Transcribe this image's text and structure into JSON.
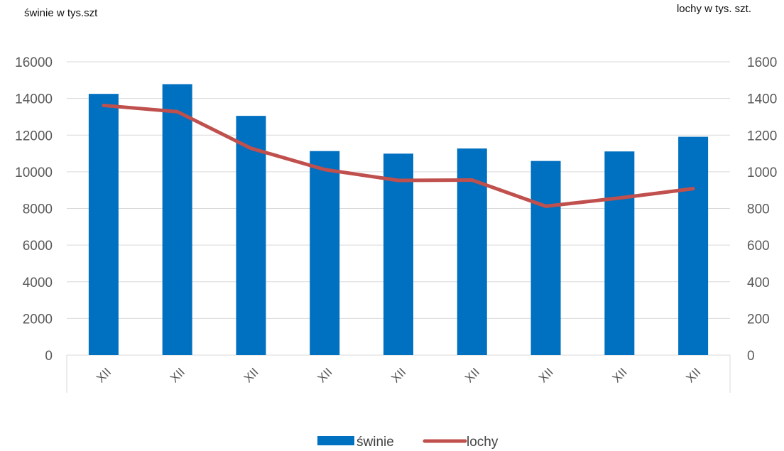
{
  "chart_data": {
    "type": "bar",
    "categories": [
      "XII",
      "XII",
      "XII",
      "XII",
      "XII",
      "XII",
      "XII",
      "XII",
      "XII"
    ],
    "series": [
      {
        "name": "świnie",
        "type": "bar",
        "axis": "left",
        "color": "#0070C0",
        "values": [
          14250,
          14780,
          13050,
          11130,
          10990,
          11270,
          10590,
          11110,
          11910
        ]
      },
      {
        "name": "lochy",
        "type": "line",
        "axis": "right",
        "color": "#C0504D",
        "values": [
          1362,
          1328,
          1128,
          1012,
          953,
          955,
          812,
          857,
          908
        ]
      }
    ],
    "ylabel_left": "świnie w tys.szt",
    "ylabel_right": "lochy w tys. szt.",
    "ylim_left": [
      0,
      16000
    ],
    "ylim_right": [
      0,
      1600
    ],
    "yticks_left": [
      "0",
      "2000",
      "4000",
      "6000",
      "8000",
      "10000",
      "12000",
      "14000",
      "16000"
    ],
    "yticks_right": [
      "0",
      "200",
      "400",
      "600",
      "800",
      "1000",
      "1200",
      "1400",
      "1600"
    ],
    "grid": true,
    "legend_position": "bottom"
  }
}
